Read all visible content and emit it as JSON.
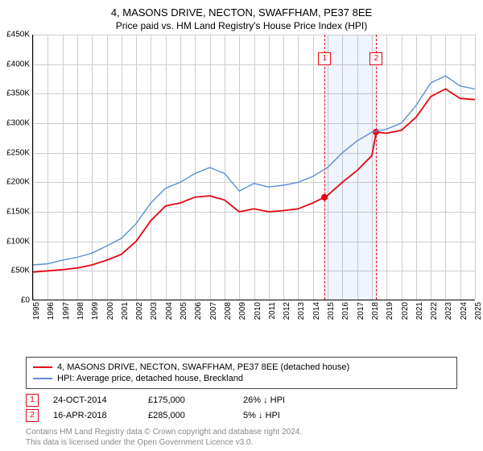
{
  "title": "4, MASONS DRIVE, NECTON, SWAFFHAM, PE37 8EE",
  "subtitle": "Price paid vs. HM Land Registry's House Price Index (HPI)",
  "chart": {
    "type": "line",
    "ylim": [
      0,
      450000
    ],
    "ytick_step": 50000,
    "yticks_labels": [
      "£0",
      "£50K",
      "£100K",
      "£150K",
      "£200K",
      "£250K",
      "£300K",
      "£350K",
      "£400K",
      "£450K"
    ],
    "xyears": [
      1995,
      1996,
      1997,
      1998,
      1999,
      2000,
      2001,
      2002,
      2003,
      2004,
      2005,
      2006,
      2007,
      2008,
      2009,
      2010,
      2011,
      2012,
      2013,
      2014,
      2015,
      2016,
      2017,
      2018,
      2019,
      2020,
      2021,
      2022,
      2023,
      2024,
      2025
    ],
    "background_color": "#ffffff",
    "grid_color": "#cccccc",
    "shade_band": {
      "from_year": 2014.8,
      "to_year": 2018.3,
      "color": "rgba(100,149,237,0.10)"
    },
    "series": [
      {
        "name": "property",
        "color": "#e30613",
        "width": 1.8,
        "points": [
          [
            1995,
            48000
          ],
          [
            1996,
            50000
          ],
          [
            1997,
            52000
          ],
          [
            1998,
            55000
          ],
          [
            1999,
            60000
          ],
          [
            2000,
            68000
          ],
          [
            2001,
            78000
          ],
          [
            2002,
            100000
          ],
          [
            2003,
            135000
          ],
          [
            2004,
            160000
          ],
          [
            2005,
            165000
          ],
          [
            2006,
            175000
          ],
          [
            2007,
            177000
          ],
          [
            2008,
            170000
          ],
          [
            2009,
            150000
          ],
          [
            2010,
            155000
          ],
          [
            2011,
            150000
          ],
          [
            2012,
            152000
          ],
          [
            2013,
            155000
          ],
          [
            2014,
            165000
          ],
          [
            2014.8,
            175000
          ],
          [
            2015,
            178000
          ],
          [
            2016,
            200000
          ],
          [
            2017,
            220000
          ],
          [
            2018,
            245000
          ],
          [
            2018.3,
            285000
          ],
          [
            2019,
            283000
          ],
          [
            2020,
            288000
          ],
          [
            2021,
            310000
          ],
          [
            2022,
            345000
          ],
          [
            2023,
            358000
          ],
          [
            2024,
            342000
          ],
          [
            2025,
            340000
          ]
        ]
      },
      {
        "name": "hpi",
        "color": "#5b8fd6",
        "width": 1.4,
        "points": [
          [
            1995,
            60000
          ],
          [
            1996,
            62000
          ],
          [
            1997,
            68000
          ],
          [
            1998,
            73000
          ],
          [
            1999,
            80000
          ],
          [
            2000,
            92000
          ],
          [
            2001,
            105000
          ],
          [
            2002,
            130000
          ],
          [
            2003,
            165000
          ],
          [
            2004,
            190000
          ],
          [
            2005,
            200000
          ],
          [
            2006,
            215000
          ],
          [
            2007,
            225000
          ],
          [
            2008,
            215000
          ],
          [
            2009,
            185000
          ],
          [
            2010,
            198000
          ],
          [
            2011,
            192000
          ],
          [
            2012,
            195000
          ],
          [
            2013,
            200000
          ],
          [
            2014,
            210000
          ],
          [
            2015,
            225000
          ],
          [
            2016,
            250000
          ],
          [
            2017,
            270000
          ],
          [
            2018,
            285000
          ],
          [
            2019,
            290000
          ],
          [
            2020,
            300000
          ],
          [
            2021,
            330000
          ],
          [
            2022,
            368000
          ],
          [
            2023,
            380000
          ],
          [
            2024,
            363000
          ],
          [
            2025,
            358000
          ]
        ]
      }
    ],
    "markers": [
      {
        "id": "1",
        "year": 2014.8,
        "color": "#e30613",
        "dot_value": 175000
      },
      {
        "id": "2",
        "year": 2018.3,
        "color": "#e30613",
        "dot_value": 285000
      }
    ]
  },
  "legend": [
    {
      "color": "#e30613",
      "label": "4, MASONS DRIVE, NECTON, SWAFFHAM, PE37 8EE (detached house)"
    },
    {
      "color": "#5b8fd6",
      "label": "HPI: Average price, detached house, Breckland"
    }
  ],
  "sales_table": [
    {
      "id": "1",
      "date": "24-OCT-2014",
      "price": "£175,000",
      "delta": "26% ↓ HPI",
      "box_color": "#e30613"
    },
    {
      "id": "2",
      "date": "16-APR-2018",
      "price": "£285,000",
      "delta": "5% ↓ HPI",
      "box_color": "#e30613"
    }
  ],
  "footer": {
    "line1": "Contains HM Land Registry data © Crown copyright and database right 2024.",
    "line2": "This data is licensed under the Open Government Licence v3.0."
  }
}
